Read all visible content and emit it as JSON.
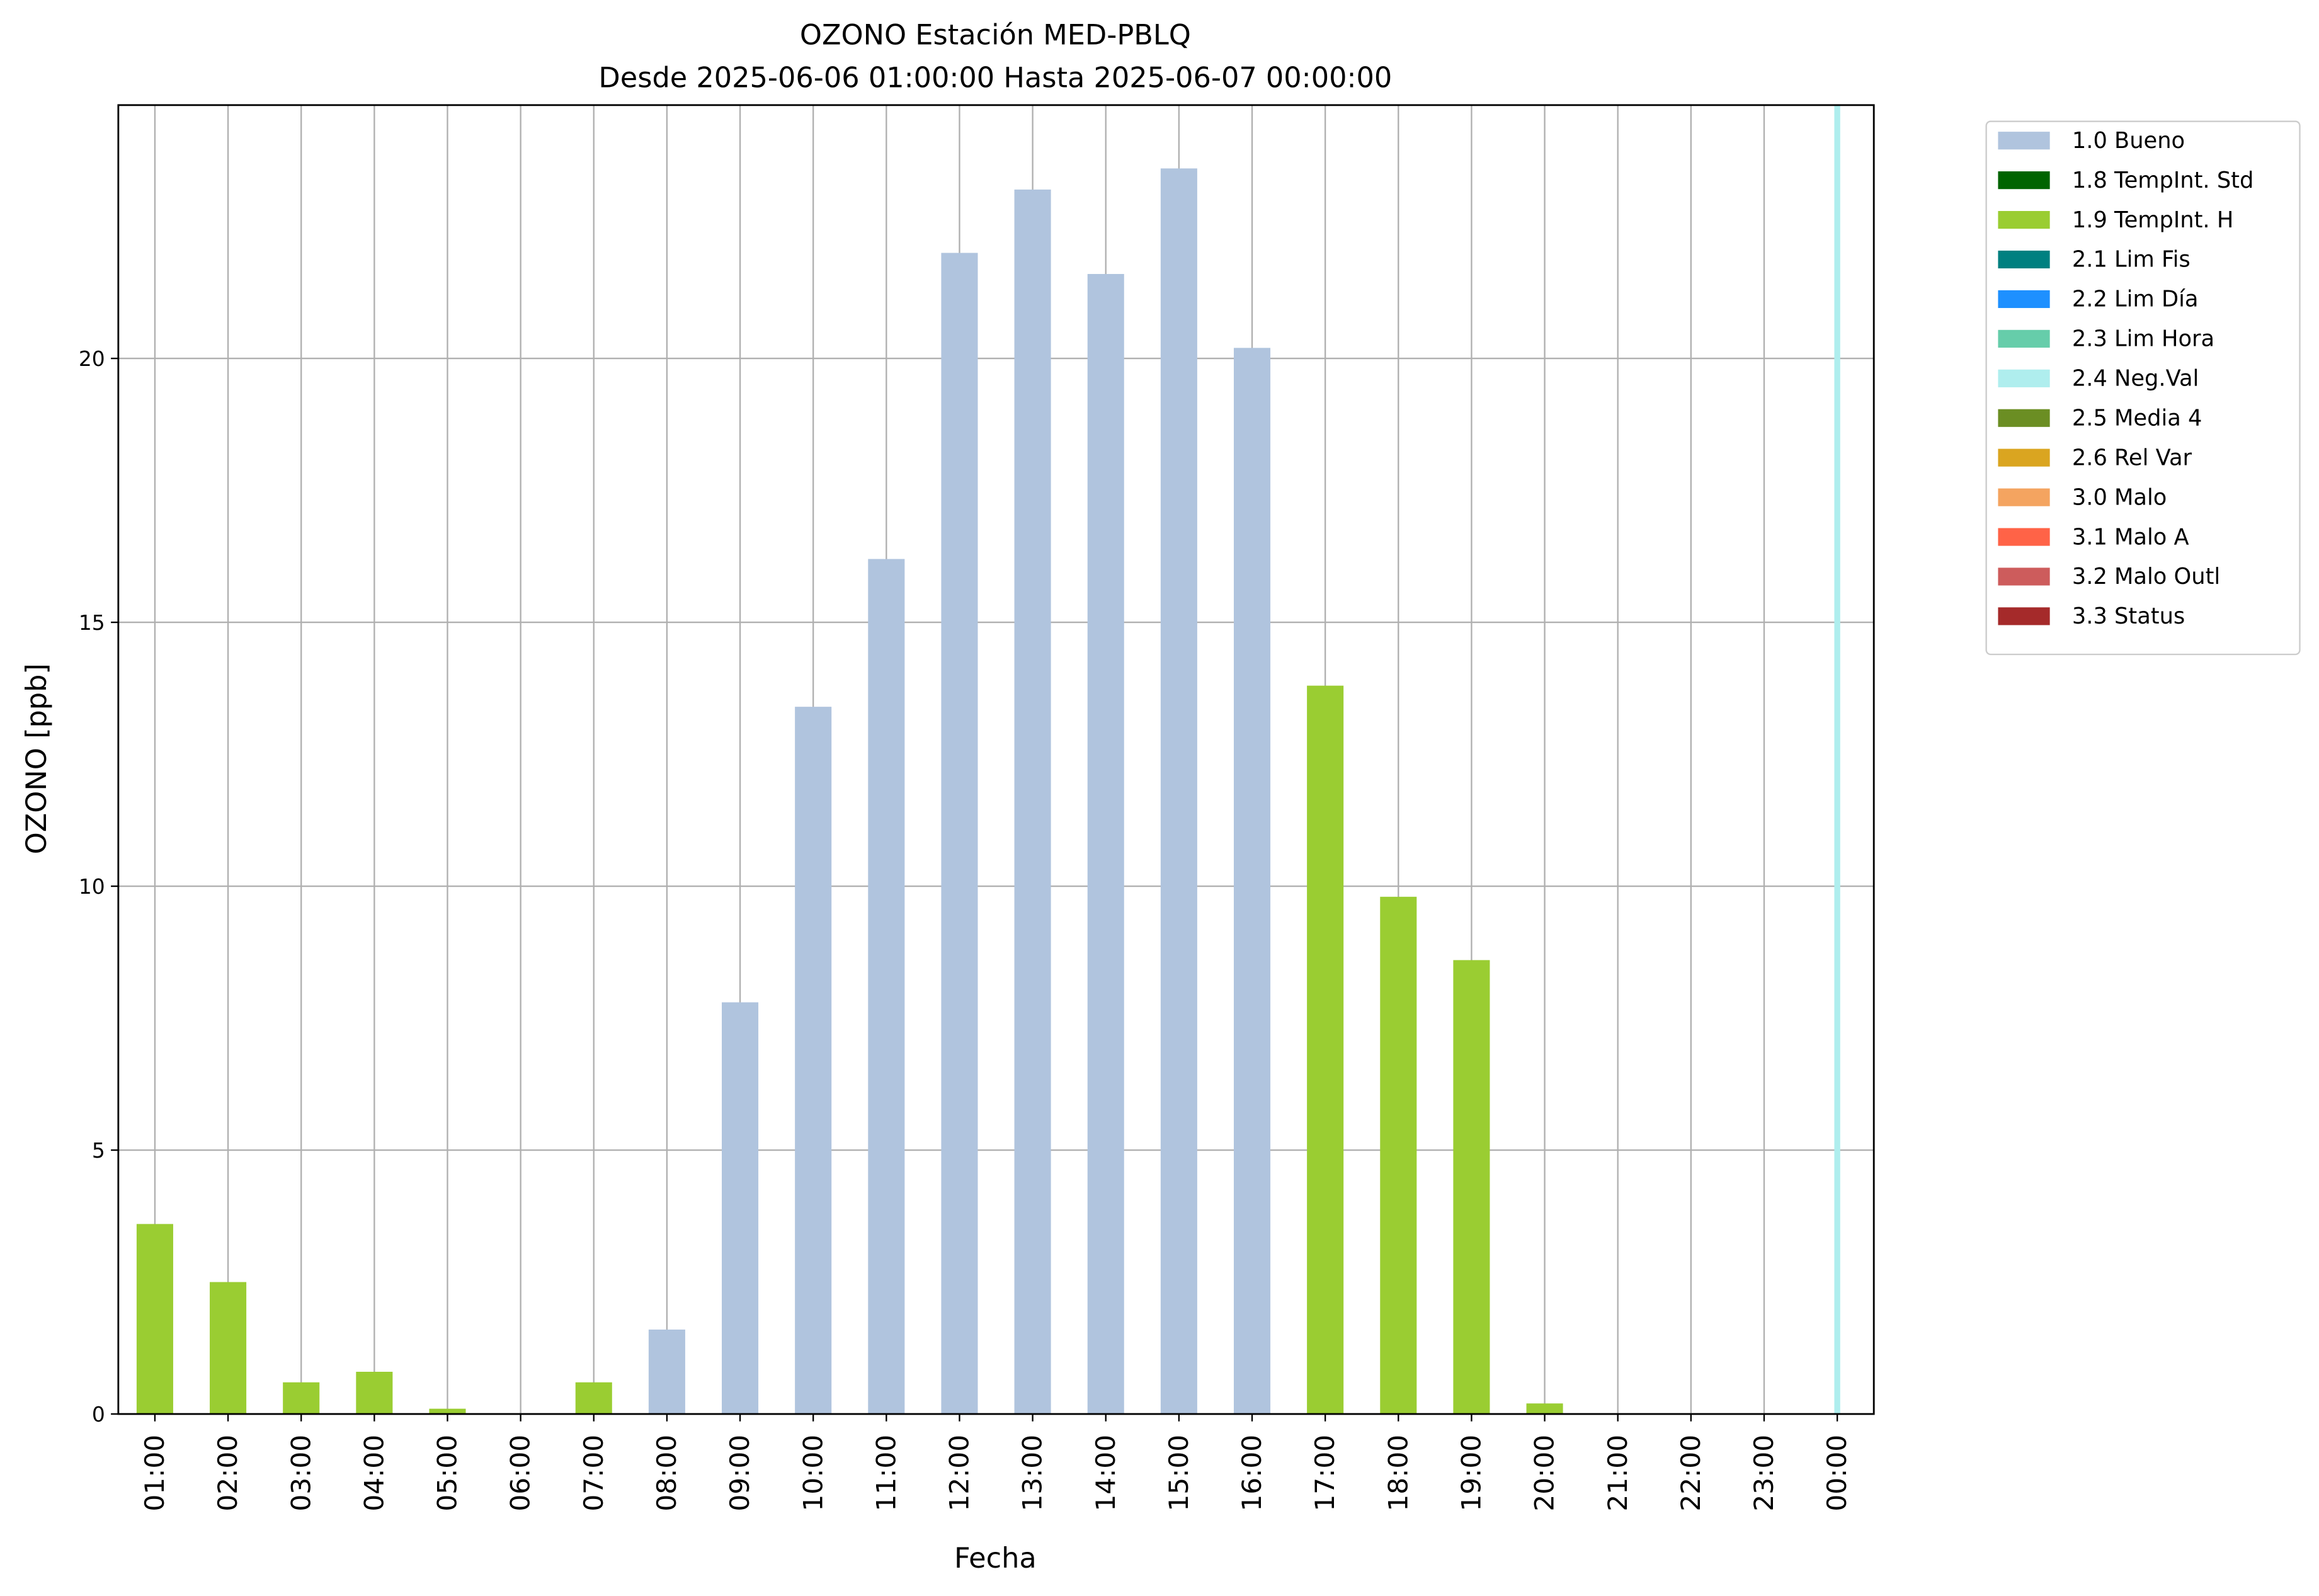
{
  "chart_data": {
    "type": "bar",
    "stacked": true,
    "title": "OZONO Estación MED-PBLQ",
    "subtitle": "Desde 2025-06-06 01:00:00 Hasta 2025-06-07 00:00:00",
    "x_label": "Fecha",
    "y_label": "OZONO [ppb]",
    "categories": [
      "01:00",
      "02:00",
      "03:00",
      "04:00",
      "05:00",
      "06:00",
      "07:00",
      "08:00",
      "09:00",
      "10:00",
      "11:00",
      "12:00",
      "13:00",
      "14:00",
      "15:00",
      "16:00",
      "17:00",
      "18:00",
      "19:00",
      "20:00",
      "21:00",
      "22:00",
      "23:00",
      "00:00"
    ],
    "ylim": [
      0,
      24.8
    ],
    "yticks": [
      0,
      5,
      10,
      15,
      20
    ],
    "grid": true,
    "legend": "outside-upper-right",
    "vspans": [
      {
        "at": "00:00",
        "color": "#afeeee"
      }
    ],
    "series": [
      {
        "name": "1.0 Bueno",
        "color": "#b0c4de",
        "values": [
          null,
          null,
          null,
          null,
          null,
          null,
          null,
          1.6,
          7.8,
          13.4,
          16.2,
          22.0,
          23.2,
          21.6,
          23.6,
          20.2,
          null,
          null,
          null,
          null,
          null,
          null,
          null,
          null
        ]
      },
      {
        "name": "1.8 TempInt. Std",
        "color": "#006400",
        "values": [
          null,
          null,
          null,
          null,
          null,
          null,
          null,
          null,
          null,
          null,
          null,
          null,
          null,
          null,
          null,
          null,
          null,
          null,
          null,
          null,
          null,
          null,
          null,
          null
        ]
      },
      {
        "name": "1.9 TempInt. H",
        "color": "#9acd32",
        "values": [
          3.6,
          2.5,
          0.6,
          0.8,
          0.1,
          null,
          0.6,
          null,
          null,
          null,
          null,
          null,
          null,
          null,
          null,
          null,
          13.8,
          9.8,
          8.6,
          0.2,
          null,
          null,
          null,
          null
        ]
      },
      {
        "name": "2.1 Lim Fis",
        "color": "#008080",
        "values": [
          null,
          null,
          null,
          null,
          null,
          null,
          null,
          null,
          null,
          null,
          null,
          null,
          null,
          null,
          null,
          null,
          null,
          null,
          null,
          null,
          null,
          null,
          null,
          null
        ]
      },
      {
        "name": "2.2 Lim Día",
        "color": "#1e90ff",
        "values": [
          null,
          null,
          null,
          null,
          null,
          null,
          null,
          null,
          null,
          null,
          null,
          null,
          null,
          null,
          null,
          null,
          null,
          null,
          null,
          null,
          null,
          null,
          null,
          null
        ]
      },
      {
        "name": "2.3 Lim Hora",
        "color": "#66cdaa",
        "values": [
          null,
          null,
          null,
          null,
          null,
          null,
          null,
          null,
          null,
          null,
          null,
          null,
          null,
          null,
          null,
          null,
          null,
          null,
          null,
          null,
          null,
          null,
          null,
          null
        ]
      },
      {
        "name": "2.4 Neg.Val",
        "color": "#afeeee",
        "values": [
          null,
          null,
          null,
          null,
          null,
          null,
          null,
          null,
          null,
          null,
          null,
          null,
          null,
          null,
          null,
          null,
          null,
          null,
          null,
          null,
          null,
          null,
          null,
          null
        ]
      },
      {
        "name": "2.5 Media 4",
        "color": "#6b8e23",
        "values": [
          null,
          null,
          null,
          null,
          null,
          null,
          null,
          null,
          null,
          null,
          null,
          null,
          null,
          null,
          null,
          null,
          null,
          null,
          null,
          null,
          null,
          null,
          null,
          null
        ]
      },
      {
        "name": "2.6 Rel Var",
        "color": "#daa520",
        "values": [
          null,
          null,
          null,
          null,
          null,
          null,
          null,
          null,
          null,
          null,
          null,
          null,
          null,
          null,
          null,
          null,
          null,
          null,
          null,
          null,
          null,
          null,
          null,
          null
        ]
      },
      {
        "name": "3.0 Malo",
        "color": "#f4a460",
        "values": [
          null,
          null,
          null,
          null,
          null,
          null,
          null,
          null,
          null,
          null,
          null,
          null,
          null,
          null,
          null,
          null,
          null,
          null,
          null,
          null,
          null,
          null,
          null,
          null
        ]
      },
      {
        "name": "3.1 Malo A",
        "color": "#ff6347",
        "values": [
          null,
          null,
          null,
          null,
          null,
          null,
          null,
          null,
          null,
          null,
          null,
          null,
          null,
          null,
          null,
          null,
          null,
          null,
          null,
          null,
          null,
          null,
          null,
          null
        ]
      },
      {
        "name": "3.2 Malo Outl",
        "color": "#cd5c5c",
        "values": [
          null,
          null,
          null,
          null,
          null,
          null,
          null,
          null,
          null,
          null,
          null,
          null,
          null,
          null,
          null,
          null,
          null,
          null,
          null,
          null,
          null,
          null,
          null,
          null
        ]
      },
      {
        "name": "3.3 Status",
        "color": "#a52a2a",
        "values": [
          null,
          null,
          null,
          null,
          null,
          null,
          null,
          null,
          null,
          null,
          null,
          null,
          null,
          null,
          null,
          null,
          null,
          null,
          null,
          null,
          null,
          null,
          null,
          null
        ]
      }
    ]
  }
}
